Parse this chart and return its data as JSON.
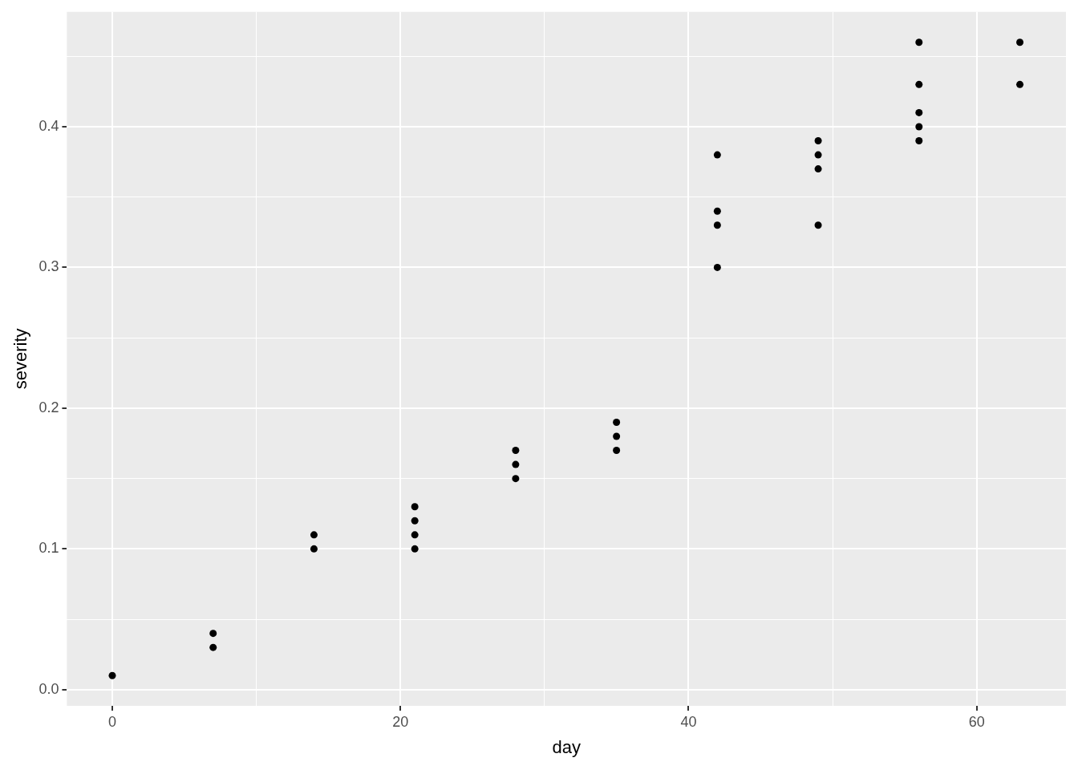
{
  "chart_data": {
    "type": "scatter",
    "xlabel": "day",
    "ylabel": "severity",
    "x": [
      0,
      7,
      7,
      14,
      14,
      21,
      21,
      21,
      21,
      28,
      28,
      28,
      35,
      35,
      35,
      42,
      42,
      42,
      42,
      49,
      49,
      49,
      49,
      56,
      56,
      56,
      56,
      56,
      63,
      63
    ],
    "values": [
      0.01,
      0.04,
      0.03,
      0.11,
      0.1,
      0.13,
      0.12,
      0.11,
      0.1,
      0.17,
      0.16,
      0.15,
      0.19,
      0.18,
      0.17,
      0.38,
      0.34,
      0.33,
      0.3,
      0.39,
      0.38,
      0.37,
      0.33,
      0.46,
      0.43,
      0.41,
      0.4,
      0.39,
      0.46,
      0.43
    ],
    "color": "#000000",
    "marker": "circle",
    "xlim": [
      -3.15,
      66.2
    ],
    "xticks": [
      0,
      {
        "value": 10,
        "label": null
      },
      20,
      {
        "value": 30,
        "label": null
      },
      40,
      {
        "value": 50,
        "label": null
      },
      60
    ],
    "ylim": [
      -0.0115,
      0.4816
    ],
    "yticks": [
      {
        "value": 0,
        "label": "0.0"
      },
      {
        "value": 0.05,
        "label": null
      },
      0.1,
      {
        "value": 0.15,
        "label": null
      },
      0.2,
      {
        "value": 0.25,
        "label": null
      },
      0.3,
      {
        "value": 0.35,
        "label": null
      },
      0.4,
      {
        "value": 0.45,
        "label": null
      }
    ],
    "grid": true,
    "legend": false
  }
}
